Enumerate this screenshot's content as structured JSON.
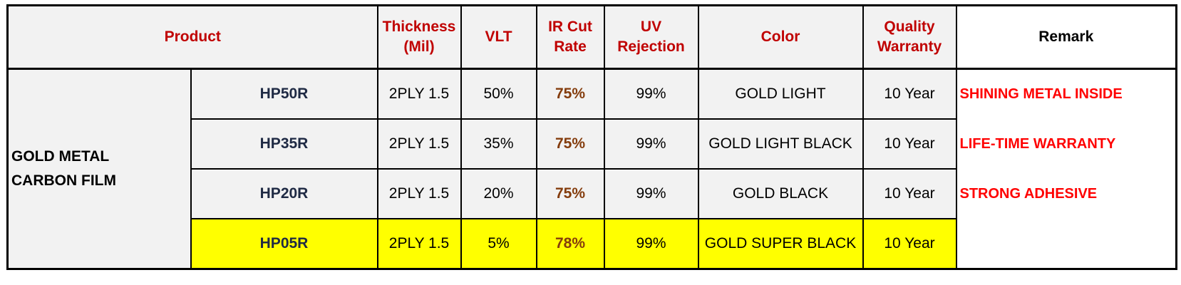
{
  "table": {
    "headers": {
      "product": "Product",
      "thickness_line1": "Thickness",
      "thickness_line2": "(Mil)",
      "vlt": "VLT",
      "ir_line1": "IR Cut",
      "ir_line2": "Rate",
      "uv_line1": "UV",
      "uv_line2": "Rejection",
      "color": "Color",
      "warranty_line1": "Quality",
      "warranty_line2": "Warranty",
      "remark": "Remark"
    },
    "category_line1": "GOLD METAL",
    "category_line2": "CARBON FILM",
    "rows": [
      {
        "model": "HP50R",
        "thickness": "2PLY 1.5",
        "vlt": "50%",
        "ir": "75%",
        "uv": "99%",
        "color": "GOLD LIGHT",
        "warranty": "10 Year",
        "remark": "SHINING METAL INSIDE"
      },
      {
        "model": "HP35R",
        "thickness": "2PLY 1.5",
        "vlt": "35%",
        "ir": "75%",
        "uv": "99%",
        "color": "GOLD LIGHT BLACK",
        "warranty": "10 Year",
        "remark": "LIFE-TIME WARRANTY"
      },
      {
        "model": "HP20R",
        "thickness": "2PLY 1.5",
        "vlt": "20%",
        "ir": "75%",
        "uv": "99%",
        "color": "GOLD BLACK",
        "warranty": "10 Year",
        "remark": "STRONG ADHESIVE"
      },
      {
        "model": "HP05R",
        "thickness": "2PLY 1.5",
        "vlt": "5%",
        "ir": "78%",
        "uv": "99%",
        "color": "GOLD SUPER BLACK",
        "warranty": "10 Year",
        "remark": ""
      }
    ],
    "colors": {
      "header_text": "#c00000",
      "category_text": "#ff0000",
      "remark_text": "#ff0000",
      "ir_text": "#843c0c",
      "highlight_row": "#ffff00",
      "cell_bg": "#f2f2f2"
    }
  }
}
